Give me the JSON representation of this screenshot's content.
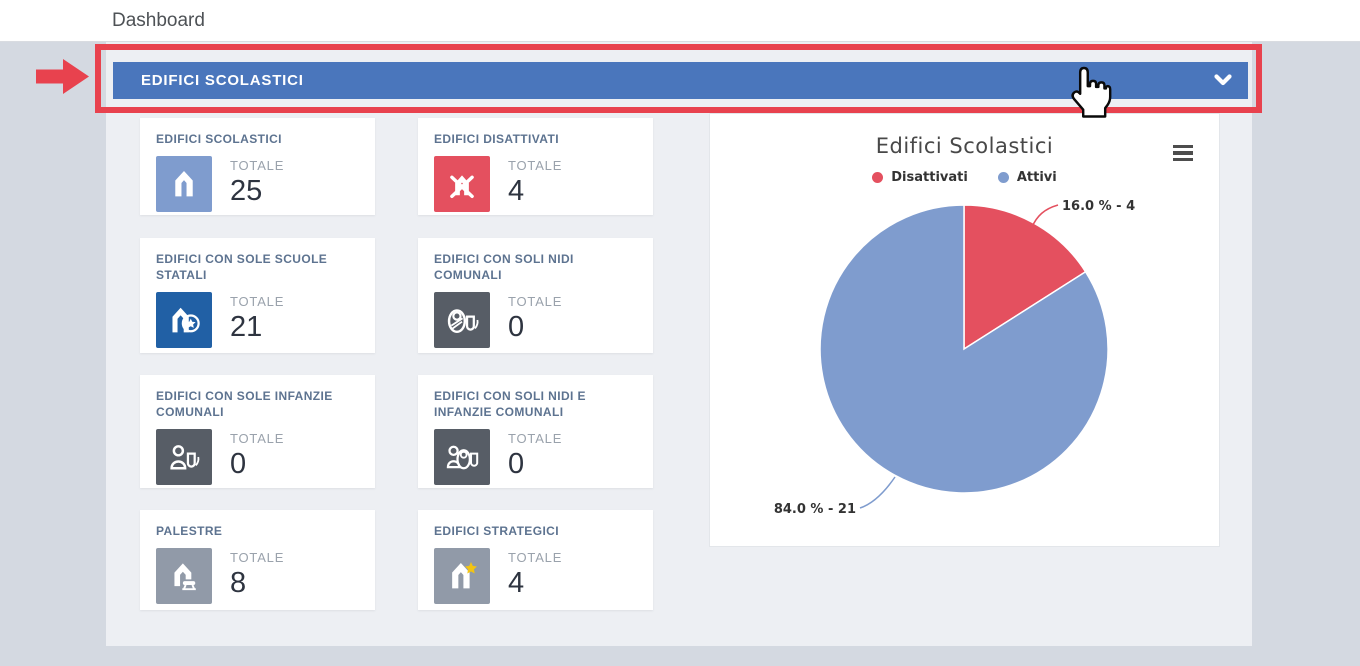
{
  "header": {
    "title": "Dashboard"
  },
  "accordion": {
    "label": "EDIFICI SCOLASTICI",
    "chevron_icon": "chevron-down-icon",
    "color": "#4a76bc"
  },
  "cards": [
    {
      "title": "EDIFICI SCOLASTICI",
      "label": "TOTALE",
      "value": "25",
      "icon": "school-building-icon",
      "icon_bg": "#7f9cce"
    },
    {
      "title": "EDIFICI DISATTIVATI",
      "label": "TOTALE",
      "value": "4",
      "icon": "disabled-building-icon",
      "icon_bg": "#e4505f"
    },
    {
      "title": "EDIFICI CON SOLE SCUOLE STATALI",
      "label": "TOTALE",
      "value": "21",
      "icon": "state-school-icon",
      "icon_bg": "#2160a5"
    },
    {
      "title": "EDIFICI CON SOLI NIDI COMUNALI",
      "label": "TOTALE",
      "value": "0",
      "icon": "nursery-icon",
      "icon_bg": "#575d66"
    },
    {
      "title": "EDIFICI CON SOLE INFANZIE COMUNALI",
      "label": "TOTALE",
      "value": "0",
      "icon": "kindergarten-icon",
      "icon_bg": "#575d66"
    },
    {
      "title": "EDIFICI CON SOLI NIDI E INFANZIE COMUNALI",
      "label": "TOTALE",
      "value": "0",
      "icon": "nursery-kindergarten-icon",
      "icon_bg": "#575d66"
    },
    {
      "title": "PALESTRE",
      "label": "TOTALE",
      "value": "8",
      "icon": "gym-icon",
      "icon_bg": "#919aa8"
    },
    {
      "title": "EDIFICI STRATEGICI",
      "label": "TOTALE",
      "value": "4",
      "icon": "strategic-building-icon",
      "icon_bg": "#919aa8"
    }
  ],
  "chart": {
    "menu_icon": "hamburger-menu-icon"
  },
  "chart_data": {
    "type": "pie",
    "title": "Edifici Scolastici",
    "legend_position": "top",
    "start_angle": "12 o'clock, clockwise",
    "series": [
      {
        "name": "Disattivati",
        "value": 4,
        "percent": 16.0,
        "color": "#e4505f",
        "data_label": "16.0 % - 4"
      },
      {
        "name": "Attivi",
        "value": 21,
        "percent": 84.0,
        "color": "#7f9cce",
        "data_label": "84.0 % - 21"
      }
    ],
    "total": 25
  },
  "annotations": {
    "arrow_icon": "red-arrow-right-icon",
    "highlight_box_color": "#e8424e",
    "cursor_icon": "hand-pointer-cursor"
  },
  "colors": {
    "page_bg": "#d4d9e1",
    "panel_bg": "#edeff3",
    "topbar_bg": "#ffffff",
    "accent_blue": "#4a76bc",
    "annotation_red": "#e8424e",
    "card_title": "#5d7390",
    "stat_label": "#9aa2ac",
    "stat_value": "#2e3440",
    "pie_red": "#e4505f",
    "pie_blue": "#7f9cce"
  }
}
